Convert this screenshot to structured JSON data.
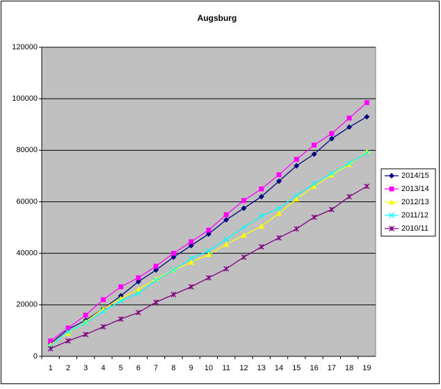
{
  "chart_data": {
    "type": "line",
    "title": "Augsburg",
    "categories": [
      1,
      2,
      3,
      4,
      5,
      6,
      7,
      8,
      9,
      10,
      11,
      12,
      13,
      14,
      15,
      16,
      17,
      18,
      19
    ],
    "ylim": [
      0,
      120000
    ],
    "yticks": [
      0,
      20000,
      40000,
      60000,
      80000,
      100000,
      120000
    ],
    "grid": true,
    "legend": "right",
    "series": [
      {
        "name": "2014/15",
        "color": "#000080",
        "marker": "diamond",
        "values": [
          5000,
          10500,
          14000,
          18500,
          23500,
          29000,
          33500,
          38500,
          43000,
          47500,
          53000,
          57500,
          62000,
          68000,
          74000,
          78500,
          84500,
          89000,
          93000
        ]
      },
      {
        "name": "2013/14",
        "color": "#ff00ff",
        "marker": "square",
        "values": [
          6000,
          11000,
          16000,
          22000,
          27000,
          30500,
          35000,
          40000,
          44500,
          49000,
          55000,
          60500,
          65000,
          70500,
          76500,
          82000,
          86500,
          92500,
          98500
        ]
      },
      {
        "name": "2012/13",
        "color": "#ffff00",
        "marker": "triangle",
        "values": [
          4500,
          9000,
          13500,
          18500,
          22500,
          26000,
          30000,
          33500,
          36500,
          39500,
          43500,
          47000,
          50500,
          55500,
          61000,
          66000,
          70500,
          74500,
          79500
        ]
      },
      {
        "name": "2011/12",
        "color": "#00ffff",
        "marker": "x",
        "values": [
          4000,
          9500,
          13000,
          17500,
          21500,
          24500,
          29500,
          33500,
          38000,
          41000,
          45500,
          50000,
          54500,
          57500,
          62500,
          67000,
          71000,
          75000,
          79000
        ]
      },
      {
        "name": "2010/11",
        "color": "#800080",
        "marker": "star",
        "values": [
          3000,
          6000,
          8500,
          11500,
          14500,
          17000,
          21000,
          24000,
          27000,
          30500,
          34000,
          38500,
          42500,
          46000,
          49500,
          54000,
          57000,
          62000,
          66000
        ]
      }
    ]
  }
}
